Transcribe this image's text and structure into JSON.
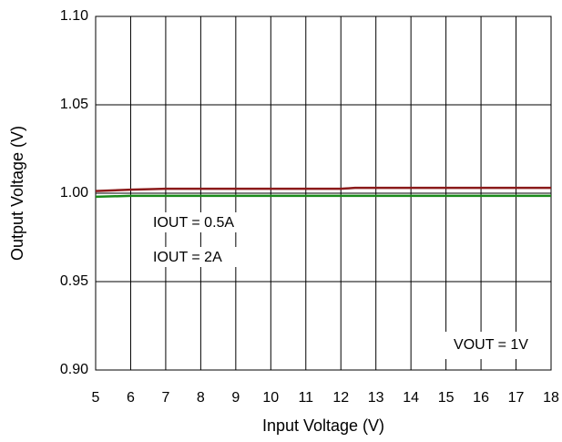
{
  "chart_data": {
    "type": "line",
    "x_label": "Input Voltage (V)",
    "y_label": "Output Voltage (V)",
    "xlim": [
      5,
      18
    ],
    "xticks": [
      5,
      6,
      7,
      8,
      9,
      10,
      11,
      12,
      13,
      14,
      15,
      16,
      17,
      18
    ],
    "ylim": [
      0.9,
      1.1
    ],
    "yticks": [
      {
        "value": 0.9,
        "label": "0.90"
      },
      0.95,
      {
        "value": 1.0,
        "label": "1.00"
      },
      1.05,
      {
        "value": 1.1,
        "label": "1.10"
      }
    ],
    "grid": true,
    "series": [
      {
        "name": "IOUT = 0.5A",
        "color": "#8b1a1a",
        "x": [
          5,
          6,
          7,
          12,
          12.4,
          18
        ],
        "values": [
          1.0012,
          1.002,
          1.0025,
          1.0025,
          1.003,
          1.003
        ]
      },
      {
        "name": "IOUT = 2A",
        "color": "#1a8a1a",
        "x": [
          5,
          6,
          18
        ],
        "values": [
          0.998,
          0.9985,
          0.9985
        ]
      }
    ],
    "annotation": "VOUT = 1V"
  }
}
